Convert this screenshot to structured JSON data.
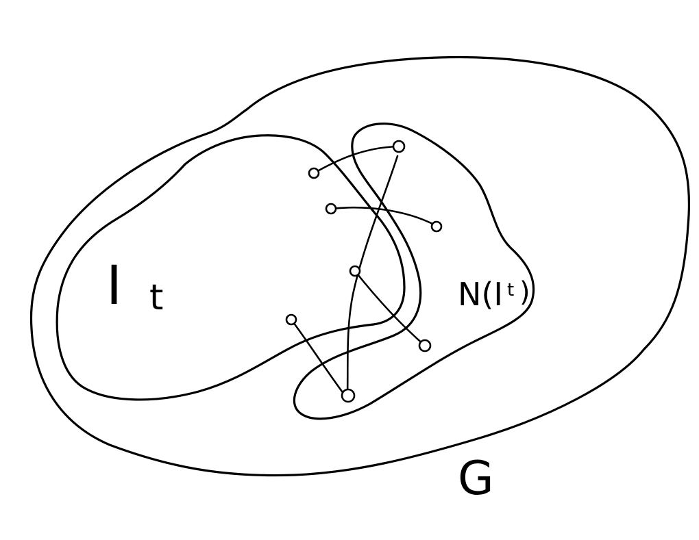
{
  "labels": {
    "set_I": "I",
    "set_I_subscript": "t",
    "neighborhood": "N(I",
    "neighborhood_subscript": "t",
    "neighborhood_close": ")",
    "graph": "G"
  },
  "colors": {
    "stroke": "#000000",
    "background": "#ffffff"
  }
}
